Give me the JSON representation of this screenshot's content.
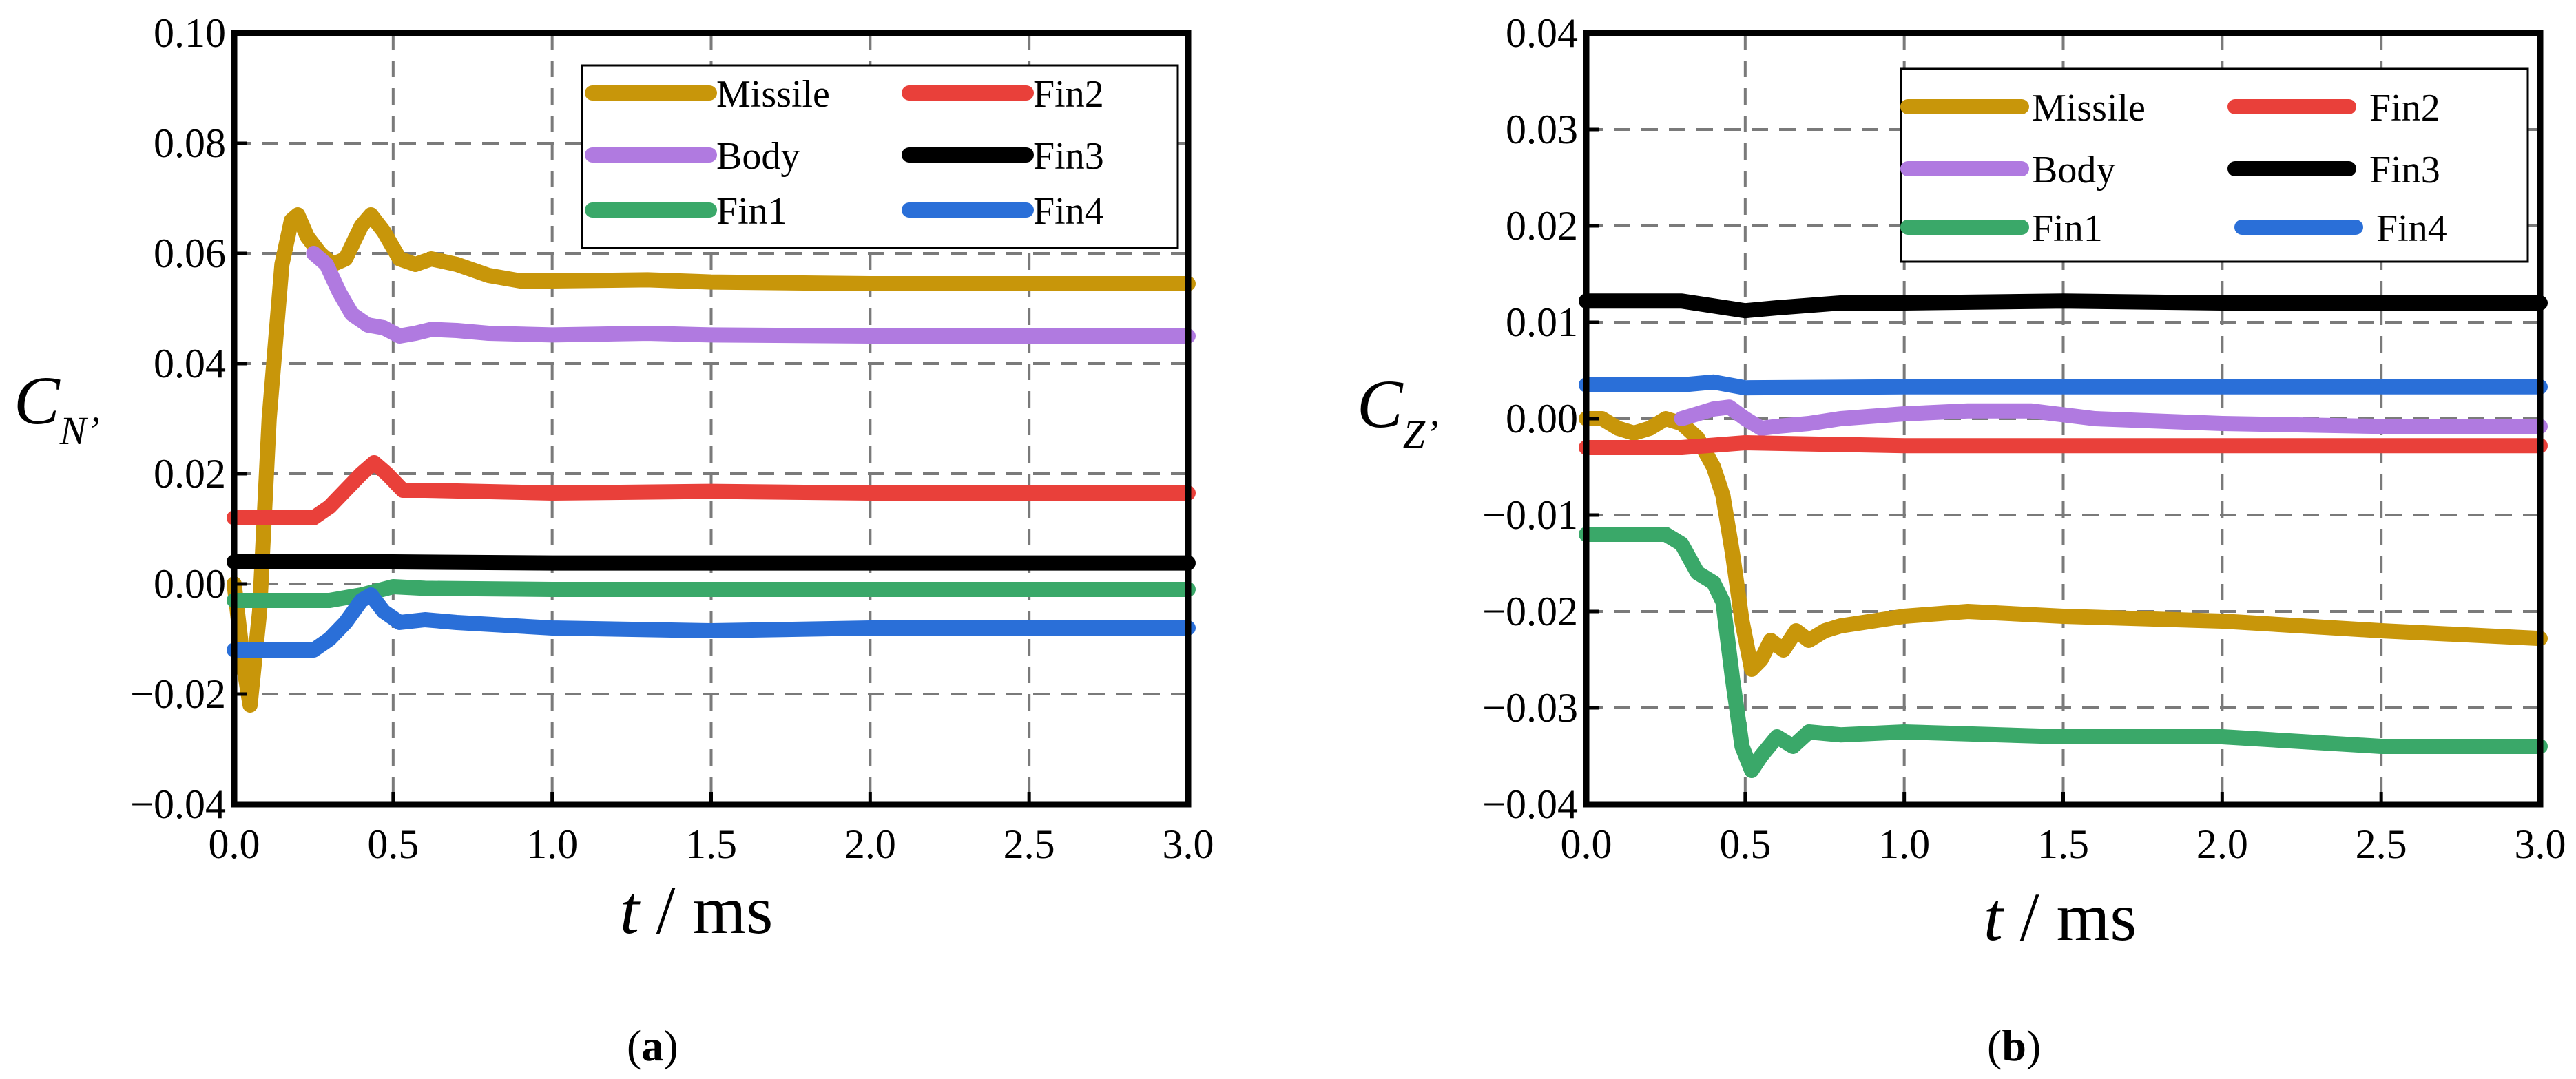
{
  "chart_data": [
    {
      "type": "line",
      "panel_label": "a",
      "ylabel": {
        "symbol": "C",
        "subscript": "N’"
      },
      "xlabel": {
        "var": "t",
        "unit": "ms"
      },
      "xlim": [
        0,
        3.0
      ],
      "ylim": [
        -0.04,
        0.1
      ],
      "xticks": [
        0,
        0.5,
        1.0,
        1.5,
        2.0,
        2.5,
        3.0
      ],
      "xtick_labels": [
        "0.0",
        "0.5",
        "1.0",
        "1.5",
        "2.0",
        "2.5",
        "3.0"
      ],
      "yticks": [
        -0.04,
        -0.02,
        0.0,
        0.02,
        0.04,
        0.06,
        0.08,
        0.1
      ],
      "ytick_labels": [
        "−0.04",
        "−0.02",
        "0.00",
        "0.02",
        "0.04",
        "0.06",
        "0.08",
        "0.10"
      ],
      "grid": true,
      "legend_position": "top-right",
      "series": [
        {
          "name": "Missile",
          "color": "#c8960a",
          "points": [
            [
              0,
              0.0
            ],
            [
              0.03,
              -0.015
            ],
            [
              0.05,
              -0.022
            ],
            [
              0.08,
              -0.005
            ],
            [
              0.11,
              0.03
            ],
            [
              0.15,
              0.058
            ],
            [
              0.18,
              0.066
            ],
            [
              0.2,
              0.067
            ],
            [
              0.23,
              0.063
            ],
            [
              0.27,
              0.06
            ],
            [
              0.31,
              0.058
            ],
            [
              0.35,
              0.059
            ],
            [
              0.4,
              0.065
            ],
            [
              0.43,
              0.067
            ],
            [
              0.47,
              0.064
            ],
            [
              0.52,
              0.059
            ],
            [
              0.57,
              0.058
            ],
            [
              0.62,
              0.059
            ],
            [
              0.7,
              0.058
            ],
            [
              0.8,
              0.056
            ],
            [
              0.9,
              0.055
            ],
            [
              1.0,
              0.055
            ],
            [
              1.3,
              0.0552
            ],
            [
              1.5,
              0.0548
            ],
            [
              2.0,
              0.0545
            ],
            [
              2.5,
              0.0545
            ],
            [
              3.0,
              0.0545
            ]
          ]
        },
        {
          "name": "Body",
          "color": "#b07ae0",
          "points": [
            [
              0.25,
              0.06
            ],
            [
              0.29,
              0.058
            ],
            [
              0.33,
              0.053
            ],
            [
              0.37,
              0.049
            ],
            [
              0.42,
              0.047
            ],
            [
              0.47,
              0.0465
            ],
            [
              0.52,
              0.045
            ],
            [
              0.57,
              0.0455
            ],
            [
              0.62,
              0.0462
            ],
            [
              0.7,
              0.046
            ],
            [
              0.8,
              0.0455
            ],
            [
              1.0,
              0.0452
            ],
            [
              1.3,
              0.0455
            ],
            [
              1.5,
              0.0452
            ],
            [
              2.0,
              0.045
            ],
            [
              2.5,
              0.045
            ],
            [
              3.0,
              0.045
            ]
          ]
        },
        {
          "name": "Fin1",
          "color": "#3aa869",
          "points": [
            [
              0,
              -0.003
            ],
            [
              0.2,
              -0.003
            ],
            [
              0.3,
              -0.003
            ],
            [
              0.4,
              -0.002
            ],
            [
              0.5,
              -0.0005
            ],
            [
              0.6,
              -0.0008
            ],
            [
              1.0,
              -0.001
            ],
            [
              2.0,
              -0.001
            ],
            [
              3.0,
              -0.001
            ]
          ]
        },
        {
          "name": "Fin2",
          "color": "#e9403a",
          "points": [
            [
              0,
              0.012
            ],
            [
              0.25,
              0.012
            ],
            [
              0.3,
              0.014
            ],
            [
              0.35,
              0.017
            ],
            [
              0.4,
              0.02
            ],
            [
              0.44,
              0.022
            ],
            [
              0.48,
              0.02
            ],
            [
              0.53,
              0.017
            ],
            [
              0.6,
              0.017
            ],
            [
              1.0,
              0.0165
            ],
            [
              1.5,
              0.0168
            ],
            [
              2.0,
              0.0165
            ],
            [
              3.0,
              0.0165
            ]
          ]
        },
        {
          "name": "Fin3",
          "color": "#000000",
          "points": [
            [
              0,
              0.004
            ],
            [
              0.5,
              0.004
            ],
            [
              1.0,
              0.0038
            ],
            [
              2.0,
              0.0038
            ],
            [
              3.0,
              0.0038
            ]
          ]
        },
        {
          "name": "Fin4",
          "color": "#2a6fd8",
          "points": [
            [
              0,
              -0.012
            ],
            [
              0.25,
              -0.012
            ],
            [
              0.3,
              -0.01
            ],
            [
              0.35,
              -0.007
            ],
            [
              0.4,
              -0.003
            ],
            [
              0.43,
              -0.002
            ],
            [
              0.47,
              -0.005
            ],
            [
              0.52,
              -0.007
            ],
            [
              0.6,
              -0.0065
            ],
            [
              0.7,
              -0.007
            ],
            [
              1.0,
              -0.008
            ],
            [
              1.5,
              -0.0085
            ],
            [
              2.0,
              -0.008
            ],
            [
              3.0,
              -0.008
            ]
          ]
        }
      ]
    },
    {
      "type": "line",
      "panel_label": "b",
      "ylabel": {
        "symbol": "C",
        "subscript": "Z’"
      },
      "xlabel": {
        "var": "t",
        "unit": "ms"
      },
      "xlim": [
        0,
        3.0
      ],
      "ylim": [
        -0.04,
        0.04
      ],
      "xticks": [
        0,
        0.5,
        1.0,
        1.5,
        2.0,
        2.5,
        3.0
      ],
      "xtick_labels": [
        "0.0",
        "0.5",
        "1.0",
        "1.5",
        "2.0",
        "2.5",
        "3.0"
      ],
      "yticks": [
        -0.04,
        -0.03,
        -0.02,
        -0.01,
        0.0,
        0.01,
        0.02,
        0.03,
        0.04
      ],
      "ytick_labels": [
        "−0.04",
        "−0.03",
        "−0.02",
        "−0.01",
        "0.00",
        "0.01",
        "0.02",
        "0.03",
        "0.04"
      ],
      "grid": true,
      "legend_position": "top-right",
      "series": [
        {
          "name": "Missile",
          "color": "#c8960a",
          "points": [
            [
              0,
              0.0
            ],
            [
              0.05,
              0.0
            ],
            [
              0.1,
              -0.001
            ],
            [
              0.15,
              -0.0015
            ],
            [
              0.2,
              -0.001
            ],
            [
              0.25,
              0.0
            ],
            [
              0.3,
              -0.0005
            ],
            [
              0.35,
              -0.002
            ],
            [
              0.4,
              -0.005
            ],
            [
              0.43,
              -0.008
            ],
            [
              0.46,
              -0.014
            ],
            [
              0.49,
              -0.021
            ],
            [
              0.52,
              -0.026
            ],
            [
              0.55,
              -0.025
            ],
            [
              0.58,
              -0.023
            ],
            [
              0.62,
              -0.024
            ],
            [
              0.66,
              -0.022
            ],
            [
              0.7,
              -0.023
            ],
            [
              0.75,
              -0.022
            ],
            [
              0.8,
              -0.0215
            ],
            [
              0.9,
              -0.021
            ],
            [
              1.0,
              -0.0205
            ],
            [
              1.2,
              -0.02
            ],
            [
              1.5,
              -0.0205
            ],
            [
              2.0,
              -0.021
            ],
            [
              2.5,
              -0.022
            ],
            [
              3.0,
              -0.0228
            ]
          ]
        },
        {
          "name": "Body",
          "color": "#b07ae0",
          "points": [
            [
              0.3,
              0.0
            ],
            [
              0.35,
              0.0005
            ],
            [
              0.4,
              0.001
            ],
            [
              0.45,
              0.0012
            ],
            [
              0.5,
              0.0
            ],
            [
              0.55,
              -0.001
            ],
            [
              0.6,
              -0.0008
            ],
            [
              0.7,
              -0.0005
            ],
            [
              0.8,
              0.0
            ],
            [
              1.0,
              0.0005
            ],
            [
              1.2,
              0.0008
            ],
            [
              1.4,
              0.0008
            ],
            [
              1.6,
              0.0
            ],
            [
              2.0,
              -0.0005
            ],
            [
              2.5,
              -0.0008
            ],
            [
              3.0,
              -0.0008
            ]
          ]
        },
        {
          "name": "Fin1",
          "color": "#3aa869",
          "points": [
            [
              0,
              -0.012
            ],
            [
              0.1,
              -0.012
            ],
            [
              0.25,
              -0.012
            ],
            [
              0.3,
              -0.013
            ],
            [
              0.35,
              -0.016
            ],
            [
              0.4,
              -0.017
            ],
            [
              0.43,
              -0.019
            ],
            [
              0.46,
              -0.027
            ],
            [
              0.49,
              -0.034
            ],
            [
              0.52,
              -0.0365
            ],
            [
              0.55,
              -0.035
            ],
            [
              0.6,
              -0.033
            ],
            [
              0.65,
              -0.034
            ],
            [
              0.7,
              -0.0325
            ],
            [
              0.8,
              -0.0328
            ],
            [
              1.0,
              -0.0325
            ],
            [
              1.5,
              -0.033
            ],
            [
              2.0,
              -0.033
            ],
            [
              2.5,
              -0.034
            ],
            [
              3.0,
              -0.034
            ]
          ]
        },
        {
          "name": "Fin2",
          "color": "#e9403a",
          "points": [
            [
              0,
              -0.003
            ],
            [
              0.3,
              -0.003
            ],
            [
              0.5,
              -0.0025
            ],
            [
              1.0,
              -0.0028
            ],
            [
              2.0,
              -0.0028
            ],
            [
              3.0,
              -0.0028
            ]
          ]
        },
        {
          "name": "Fin3",
          "color": "#000000",
          "points": [
            [
              0,
              0.0122
            ],
            [
              0.3,
              0.0122
            ],
            [
              0.5,
              0.0112
            ],
            [
              0.6,
              0.0115
            ],
            [
              0.8,
              0.012
            ],
            [
              1.0,
              0.012
            ],
            [
              1.5,
              0.0122
            ],
            [
              2.0,
              0.012
            ],
            [
              3.0,
              0.012
            ]
          ]
        },
        {
          "name": "Fin4",
          "color": "#2a6fd8",
          "points": [
            [
              0,
              0.0035
            ],
            [
              0.3,
              0.0035
            ],
            [
              0.4,
              0.0038
            ],
            [
              0.5,
              0.0032
            ],
            [
              1.0,
              0.0033
            ],
            [
              2.0,
              0.0033
            ],
            [
              3.0,
              0.0033
            ]
          ]
        }
      ]
    }
  ]
}
